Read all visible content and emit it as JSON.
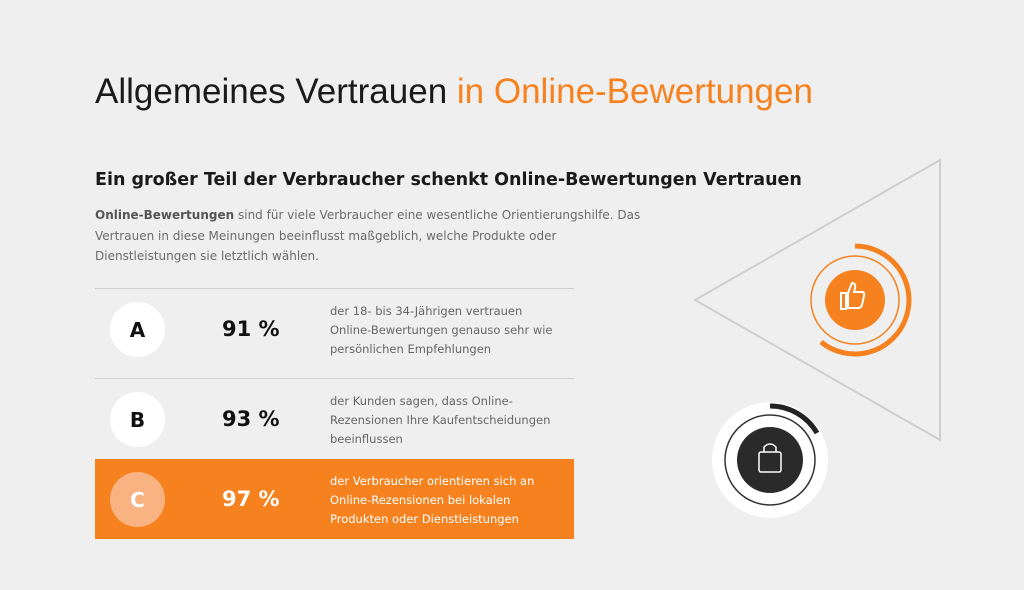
{
  "header": {
    "title_main": "Allgemeines Vertrauen",
    "title_accent": "in Online-Bewertungen"
  },
  "section": {
    "heading": "Ein großer Teil der Verbraucher schenkt Online-Bewertungen Vertrauen",
    "paragraph": {
      "lead": "Online-Bewertungen",
      "lines": [
        "sind für viele Verbraucher eine wesentliche Orientierungshilfe. Das",
        "Vertrauen in diese Meinungen beeinflusst maßgeblich, welche Produkte oder",
        "Dienstleistungen sie letztlich wählen."
      ]
    }
  },
  "rows": [
    {
      "letter": "A",
      "percent": "91 %",
      "lines": [
        "der 18- bis 34-Jährigen vertrauen",
        "Online-Bewertungen genauso sehr wie",
        "persönlichen Empfehlungen"
      ]
    },
    {
      "letter": "B",
      "percent": "93 %",
      "lines": [
        "der Kunden sagen, dass Online-",
        "Rezensionen Ihre Kaufentscheidungen",
        "beeinflussen"
      ]
    },
    {
      "letter": "C",
      "percent": "97 %",
      "lines": [
        "der Verbraucher orientieren sich an",
        "Online-Rezensionen bei lokalen",
        "Produkten oder Dienstleistungen"
      ]
    }
  ]
}
